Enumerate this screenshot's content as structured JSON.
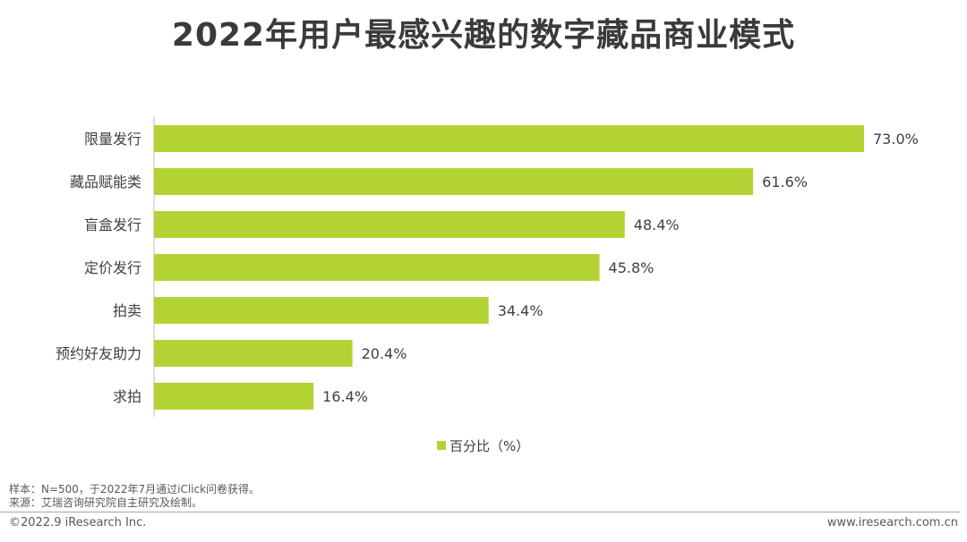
{
  "chart_data": {
    "type": "bar",
    "orientation": "horizontal",
    "title": "2022年用户最感兴趣的数字藏品商业模式",
    "categories": [
      "限量发行",
      "藏品赋能类",
      "盲盒发行",
      "定价发行",
      "拍卖",
      "预约好友助力",
      "求拍"
    ],
    "series": [
      {
        "name": "百分比（%）",
        "values": [
          73.0,
          61.6,
          48.4,
          45.8,
          34.4,
          20.4,
          16.4
        ],
        "labels": [
          "73.0%",
          "61.6%",
          "48.4%",
          "45.8%",
          "34.4%",
          "20.4%",
          "16.4%"
        ],
        "color": "#b3d335"
      }
    ],
    "xlim": [
      0,
      73.0
    ],
    "grid": false,
    "legend_position": "bottom-center"
  },
  "footnote": {
    "sample": "样本：N=500，于2022年7月通过iClick问卷获得。",
    "source": "来源：艾瑞咨询研究院自主研究及绘制。"
  },
  "footer": {
    "copyright": "©2022.9 iResearch Inc.",
    "website": "www.iresearch.com.cn"
  }
}
